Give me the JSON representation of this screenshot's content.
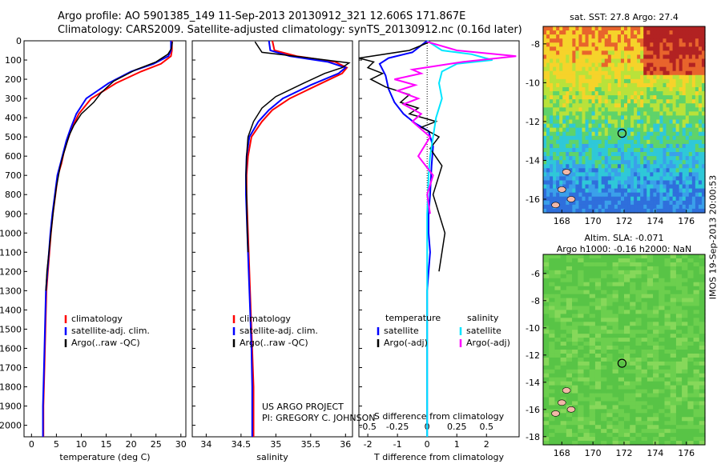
{
  "header": {
    "line1": "Argo profile: AO 5901385_149 11-Sep-2013 20130912_321 12.606S 171.867E",
    "line2": "Climatology: CARS2009. Satellite-adjusted climatology: synTS_20130912.nc (0.16d later)"
  },
  "side_note": "IMOS 19-Sep-2013 20:00:53",
  "credits": [
    "US ARGO PROJECT",
    "PI: GREGORY C. JOHNSON"
  ],
  "colors": {
    "climatology": "#ff0000",
    "satellite": "#0000ff",
    "argo": "#000000",
    "sal_satellite": "#00e5ff",
    "sal_argo": "#ff00ff"
  },
  "chart_data": [
    {
      "type": "line",
      "xlabel": "temperature (deg C)",
      "xlim": [
        -1.5,
        31
      ],
      "xticks": [
        0,
        5,
        10,
        15,
        20,
        25,
        30
      ],
      "ylim": [
        0,
        2060
      ],
      "yticks": [
        0,
        100,
        200,
        300,
        400,
        500,
        600,
        700,
        800,
        900,
        1000,
        1100,
        1200,
        1300,
        1400,
        1500,
        1600,
        1700,
        1800,
        1900,
        2000
      ],
      "legend": {
        "placement": "lower-center",
        "entries": [
          "climatology",
          "satellite-adj. clim.",
          "Argo(..raw -QC)"
        ]
      },
      "series": [
        {
          "name": "climatology",
          "color": "#ff0000",
          "x": [
            28.2,
            28.2,
            28,
            26,
            22,
            17,
            12,
            9.5,
            8,
            7.2,
            6.5,
            6,
            5.3,
            4.8,
            4.3,
            3.9,
            3.6,
            3.3,
            3.0,
            2.8,
            2.6,
            2.4,
            2.4
          ],
          "y": [
            0,
            50,
            80,
            120,
            160,
            220,
            300,
            380,
            460,
            520,
            580,
            640,
            700,
            800,
            900,
            1000,
            1100,
            1200,
            1300,
            1500,
            1700,
            1900,
            2060
          ]
        },
        {
          "name": "satellite-adj. clim.",
          "color": "#0000ff",
          "x": [
            28,
            28,
            27.5,
            24.5,
            20,
            15.5,
            11,
            9,
            7.8,
            7,
            6.4,
            5.8,
            5.2,
            4.7,
            4.2,
            3.8,
            3.5,
            3.2,
            2.9,
            2.7,
            2.5,
            2.3,
            2.3
          ],
          "y": [
            0,
            50,
            80,
            120,
            160,
            220,
            300,
            380,
            460,
            520,
            580,
            640,
            700,
            800,
            900,
            1000,
            1100,
            1200,
            1300,
            1500,
            1700,
            1900,
            2060
          ]
        },
        {
          "name": "Argo(..raw -QC)",
          "color": "#000000",
          "x": [
            28.3,
            28.1,
            27.4,
            25,
            21,
            16.5,
            14,
            12.5,
            10,
            8.5,
            7.6,
            7,
            6.3,
            5.7,
            5,
            4.4,
            3.9,
            3.5,
            3.1,
            2.9
          ],
          "y": [
            5,
            40,
            70,
            110,
            150,
            210,
            270,
            320,
            380,
            440,
            490,
            540,
            600,
            660,
            760,
            880,
            1000,
            1100,
            1200,
            1300
          ]
        }
      ]
    },
    {
      "type": "line",
      "xlabel": "salinity",
      "xlim": [
        33.8,
        36.1
      ],
      "xticks": [
        34,
        34.5,
        35,
        35.5,
        36
      ],
      "ylim": [
        0,
        2060
      ],
      "legend": {
        "placement": "lower-center",
        "entries": [
          "climatology",
          "satellite-adj. clim.",
          "Argo(..raw -QC)"
        ]
      },
      "series": [
        {
          "name": "climatology",
          "color": "#ff0000",
          "x": [
            34.95,
            34.98,
            35.3,
            35.85,
            36.02,
            35.95,
            35.6,
            35.2,
            34.95,
            34.8,
            34.65,
            34.6,
            34.58,
            34.58,
            34.6,
            34.62,
            34.64,
            34.66,
            34.68,
            34.68
          ],
          "y": [
            0,
            50,
            80,
            110,
            140,
            170,
            230,
            300,
            360,
            420,
            500,
            600,
            700,
            800,
            1000,
            1200,
            1400,
            1600,
            1800,
            2060
          ]
        },
        {
          "name": "satellite-adj. clim.",
          "color": "#0000ff",
          "x": [
            34.9,
            34.92,
            35.2,
            35.75,
            36.0,
            35.9,
            35.5,
            35.1,
            34.9,
            34.75,
            34.62,
            34.58,
            34.57,
            34.57,
            34.59,
            34.61,
            34.63,
            34.65,
            34.66,
            34.66
          ],
          "y": [
            0,
            50,
            80,
            110,
            140,
            170,
            230,
            300,
            360,
            420,
            500,
            600,
            700,
            800,
            1000,
            1200,
            1400,
            1600,
            1800,
            2060
          ]
        },
        {
          "name": "Argo(..raw -QC)",
          "color": "#000000",
          "x": [
            34.7,
            34.8,
            35.5,
            36.05,
            35.95,
            35.7,
            35.4,
            35.0,
            34.8,
            34.68,
            34.6,
            34.58,
            34.57,
            34.58,
            34.59,
            34.6
          ],
          "y": [
            5,
            60,
            90,
            115,
            140,
            170,
            220,
            290,
            350,
            420,
            500,
            600,
            700,
            800,
            1000,
            1100
          ]
        }
      ]
    },
    {
      "type": "line",
      "xlabel": "T difference from climatology",
      "xlabel_top": "S difference from climatology",
      "xlim": [
        -2.3,
        3.1
      ],
      "xticks": [
        -2,
        -1,
        0,
        1,
        2
      ],
      "xticks_s": [
        "-0.5",
        "-0.25",
        "0",
        "0.25",
        "0.5"
      ],
      "xticks_s_pos": [
        -2,
        -1,
        0,
        1,
        2
      ],
      "ylim": [
        0,
        2060
      ],
      "legend": {
        "placement": "lower-center",
        "temperature_heading": "temperature",
        "salinity_heading": "salinity",
        "entries": [
          "satellite",
          "Argo(-adj)",
          "satellite",
          "Argo(-adj)"
        ]
      },
      "series": [
        {
          "name": "temperature satellite",
          "color": "#0000ff",
          "x": [
            0,
            -0.5,
            -1.3,
            -1.6,
            -1.4,
            -1.3,
            -1.1,
            -0.8,
            -0.4,
            0.05,
            0.2,
            0.15,
            0.1,
            0.05,
            0.05,
            0.1,
            0.05,
            0,
            0,
            0
          ],
          "y": [
            0,
            60,
            90,
            120,
            180,
            250,
            320,
            380,
            430,
            470,
            550,
            650,
            800,
            900,
            1000,
            1100,
            1200,
            1300,
            1600,
            2060
          ]
        },
        {
          "name": "temperature Argo(-adj)",
          "color": "#000000",
          "x": [
            0.1,
            -0.6,
            -2.3,
            -1.8,
            -2.0,
            -1.5,
            -1.9,
            -1.4,
            -0.6,
            -0.9,
            -0.3,
            -0.6,
            0.3,
            -0.2,
            0.4,
            0.1,
            0.5,
            0.2,
            0.6,
            0.4
          ],
          "y": [
            5,
            50,
            90,
            110,
            140,
            170,
            200,
            240,
            280,
            320,
            350,
            380,
            420,
            450,
            500,
            560,
            650,
            800,
            1000,
            1200
          ]
        },
        {
          "name": "salinity satellite",
          "color": "#00e5ff",
          "x": [
            0,
            0.5,
            1.5,
            2.2,
            1.0,
            0.5,
            0.4,
            0.5,
            0.3,
            0.2,
            0.1,
            0.05,
            0,
            0,
            0,
            0
          ],
          "y": [
            0,
            50,
            70,
            100,
            120,
            160,
            220,
            300,
            400,
            500,
            600,
            700,
            900,
            1100,
            1500,
            2060
          ]
        },
        {
          "name": "salinity Argo(-adj)",
          "color": "#ff00ff",
          "x": [
            0,
            1.0,
            3.0,
            1.2,
            -0.5,
            -0.2,
            -1.1,
            -0.4,
            -1.0,
            -0.3,
            -0.8,
            -0.2,
            -0.5,
            0.1,
            -0.3,
            0.2,
            0,
            0.1
          ],
          "y": [
            5,
            50,
            80,
            110,
            150,
            170,
            200,
            230,
            260,
            300,
            330,
            380,
            420,
            500,
            600,
            700,
            800,
            900
          ]
        }
      ]
    },
    {
      "type": "heatmap",
      "title": "sat. SST: 27.8 Argo: 27.4",
      "xticks": [
        168,
        170,
        172,
        174,
        176
      ],
      "yticks": [
        -8,
        -10,
        -12,
        -14,
        -16
      ],
      "xlim": [
        166.8,
        177.2
      ],
      "ylim": [
        -16.7,
        -7.1
      ],
      "marker": {
        "x": 171.867,
        "y": -12.606
      }
    },
    {
      "type": "heatmap",
      "title_line1": "Altim. SLA: -0.071",
      "title_line2": "Argo h1000: -0.16 h2000: NaN",
      "xticks": [
        168,
        170,
        172,
        174,
        176
      ],
      "yticks": [
        -6,
        -8,
        -10,
        -12,
        -14,
        -16,
        -18
      ],
      "xlim": [
        166.8,
        177.2
      ],
      "ylim": [
        -18.6,
        -4.6
      ],
      "marker": {
        "x": 171.867,
        "y": -12.606
      }
    }
  ]
}
